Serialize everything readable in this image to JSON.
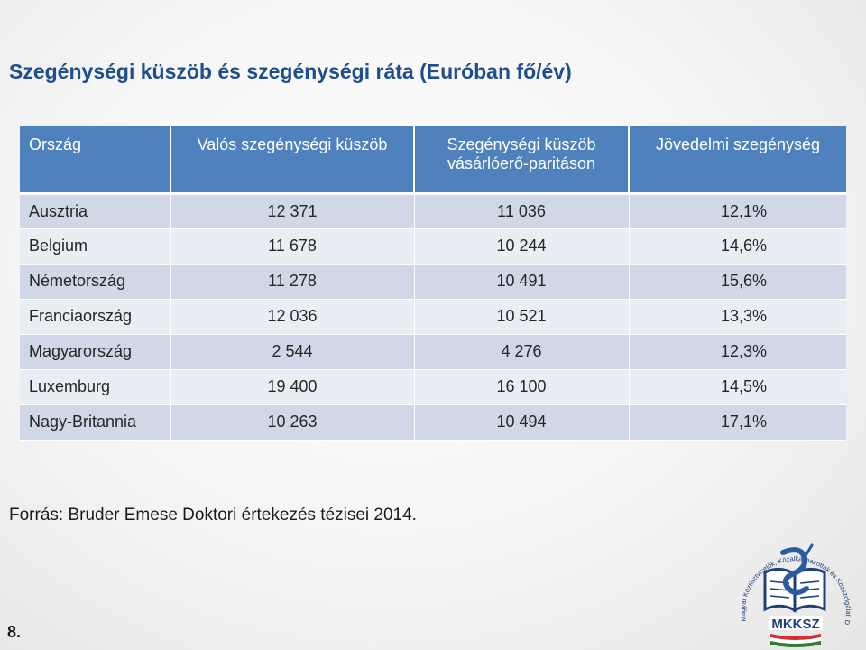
{
  "title": "Szegénységi küszöb és szegénységi ráta (Euróban fő/év)",
  "table": {
    "headers": [
      "Ország",
      "Valós szegénységi küszöb",
      "Szegénységi küszöb vásárlóerő-paritáson",
      "Jövedelmi szegénység"
    ],
    "rows": [
      [
        "Ausztria",
        "12 371",
        "11 036",
        "12,1%"
      ],
      [
        "Belgium",
        "11 678",
        "10 244",
        "14,6%"
      ],
      [
        "Németország",
        "11 278",
        "10 491",
        "15,6%"
      ],
      [
        "Franciaország",
        "12 036",
        "10 521",
        "13,3%"
      ],
      [
        "Magyarország",
        "2 544",
        "4 276",
        "12,3%"
      ],
      [
        "Luxemburg",
        "19 400",
        "16 100",
        "14,5%"
      ],
      [
        "Nagy-Britannia",
        "10 263",
        "10 494",
        "17,1%"
      ]
    ]
  },
  "source": "Forrás: Bruder Emese Doktori értekezés tézisei 2014.",
  "page_number": "8.",
  "logo": {
    "text": "MKKSZ",
    "ring_text": "Magyar Köztisztviselők, Közalkalmazottak és Közszolgálati Dolgozók Szakszervezete",
    "icon": "union-logo-book-icon"
  },
  "colors": {
    "title": "#1f4e8c",
    "header_bg": "#4f81bd",
    "row_odd": "#d0d8e8",
    "row_even": "#e9edf4"
  }
}
